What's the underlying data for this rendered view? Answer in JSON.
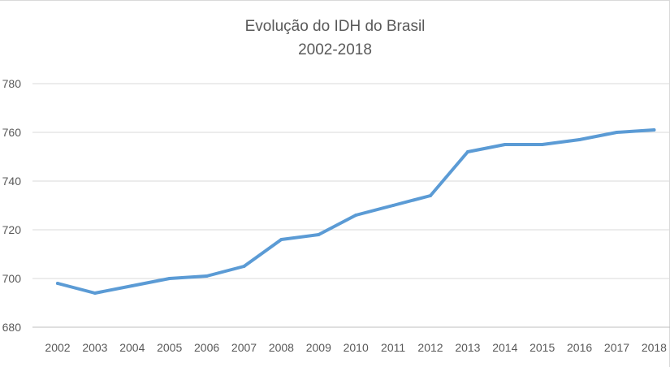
{
  "chart_data": {
    "type": "line",
    "title": "Evolução do IDH do Brasil",
    "subtitle": "2002-2018",
    "xlabel": "",
    "ylabel": "",
    "categories": [
      "2002",
      "2003",
      "2004",
      "2005",
      "2006",
      "2007",
      "2008",
      "2009",
      "2010",
      "2011",
      "2012",
      "2013",
      "2014",
      "2015",
      "2016",
      "2017",
      "2018"
    ],
    "y_ticks": [
      "680",
      "700",
      "720",
      "740",
      "760",
      "780"
    ],
    "ylim": [
      680,
      780
    ],
    "grid": true,
    "legend": "none",
    "series": [
      {
        "color": "#5b9bd5",
        "values": [
          698,
          694,
          697,
          700,
          701,
          705,
          716,
          718,
          726,
          730,
          734,
          752,
          755,
          755,
          757,
          760,
          761
        ]
      }
    ]
  }
}
